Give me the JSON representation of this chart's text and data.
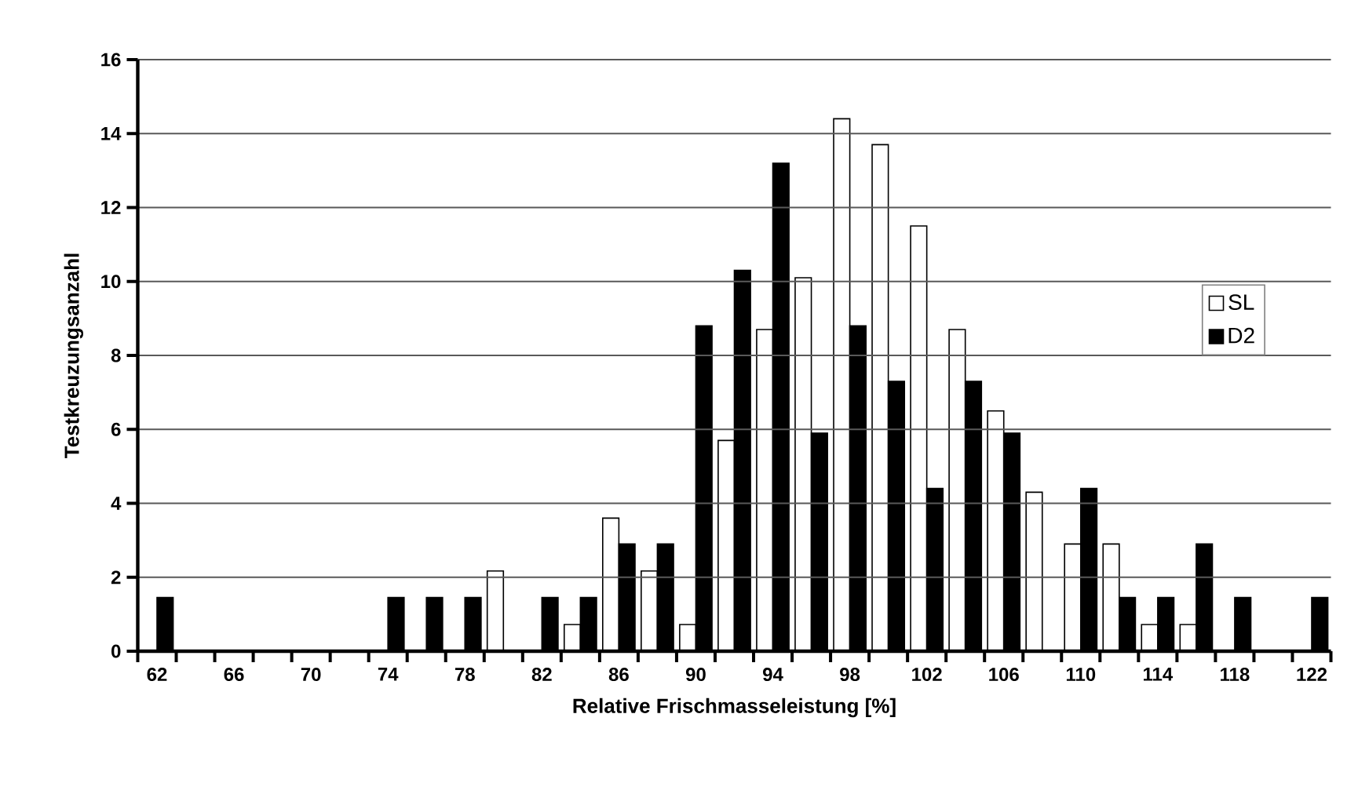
{
  "chart_data": {
    "type": "bar",
    "xlabel": "Relative Frischmasseleistung [%]",
    "ylabel": "Testkreuzungsanzahl",
    "categories": [
      "62",
      null,
      "66",
      null,
      "70",
      null,
      "74",
      null,
      "78",
      null,
      "82",
      null,
      "86",
      null,
      "90",
      null,
      "94",
      null,
      "98",
      null,
      "102",
      null,
      "106",
      null,
      "110",
      null,
      "114",
      null,
      "118",
      null,
      "122"
    ],
    "series": [
      {
        "name": "SL",
        "color": "#ffffff",
        "values": [
          0,
          0,
          0,
          0,
          0,
          0,
          0,
          0,
          0,
          2.17,
          0,
          0.72,
          3.6,
          2.17,
          0.72,
          5.7,
          8.7,
          10.1,
          14.4,
          13.7,
          11.5,
          8.7,
          6.5,
          4.3,
          2.9,
          2.9,
          0.72,
          0.72,
          0,
          0,
          0
        ]
      },
      {
        "name": "D2",
        "color": "#000000",
        "values": [
          1.45,
          0,
          0,
          0,
          0,
          0,
          1.45,
          1.45,
          1.45,
          0,
          1.45,
          1.45,
          2.9,
          2.9,
          8.8,
          10.3,
          13.2,
          5.9,
          8.8,
          7.3,
          4.4,
          7.3,
          5.9,
          0,
          4.4,
          1.45,
          1.45,
          2.9,
          1.45,
          0,
          1.45
        ]
      }
    ],
    "ylim": [
      0,
      16
    ],
    "yticks": [
      0,
      2,
      4,
      6,
      8,
      10,
      12,
      14,
      16
    ],
    "grid": "y",
    "legend": "right"
  }
}
